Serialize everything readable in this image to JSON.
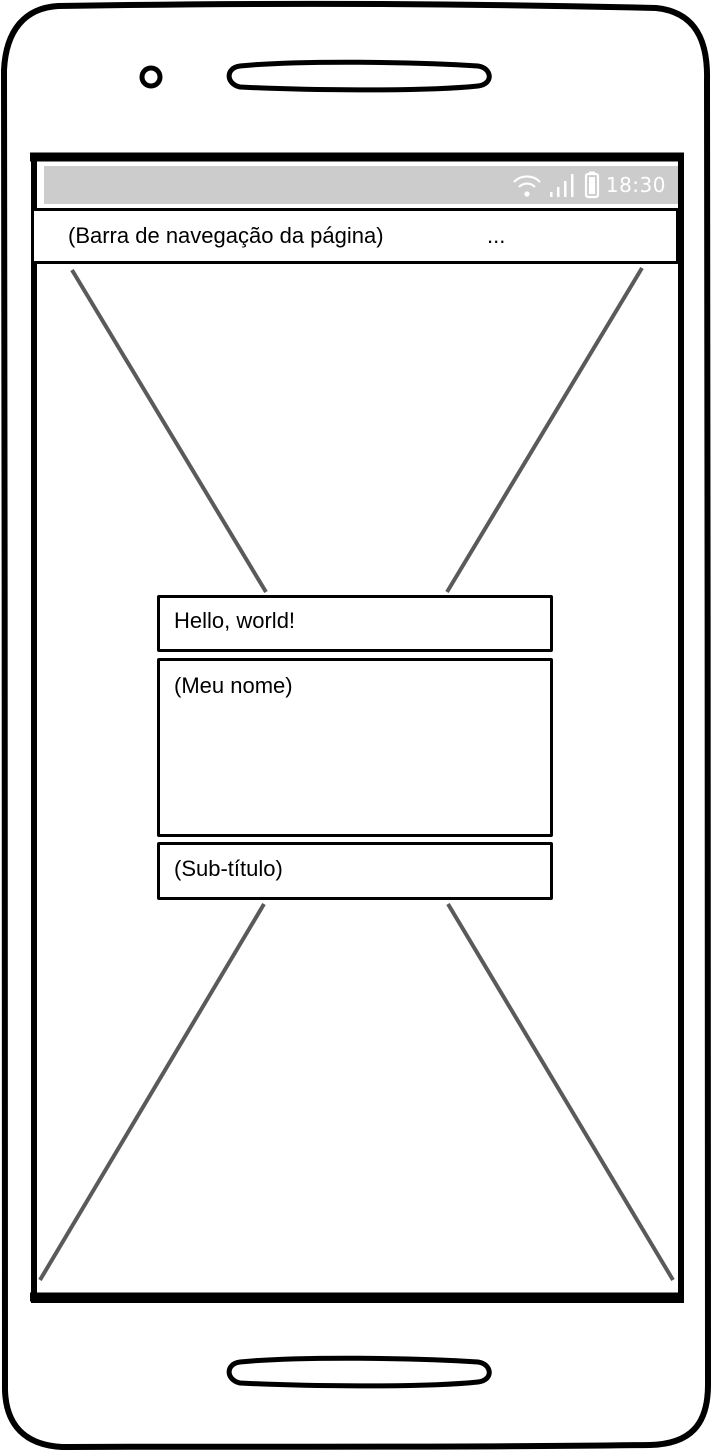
{
  "status_bar": {
    "time": "18:30",
    "icons": [
      "wifi-icon",
      "signal-icon",
      "battery-icon"
    ],
    "background": "#cccccc"
  },
  "nav_bar": {
    "title": "(Barra de navegação da página)",
    "more": "..."
  },
  "content": {
    "greeting": "Hello, world!",
    "name": "(Meu nome)",
    "subtitle": "(Sub-título)"
  },
  "colors": {
    "ink": "#000000",
    "placeholder_lines": "#5a5a5a"
  }
}
